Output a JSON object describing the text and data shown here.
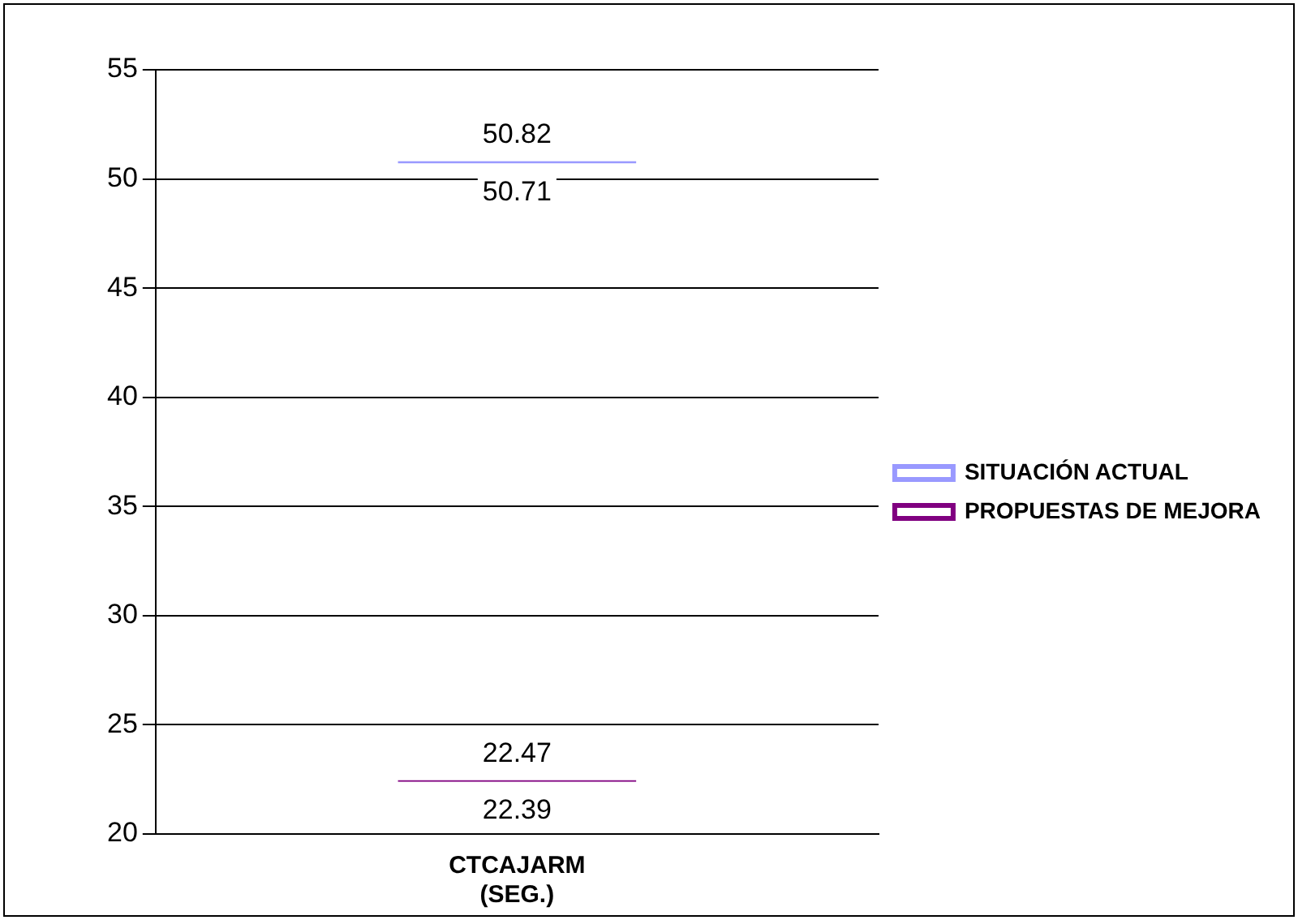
{
  "chart_data": {
    "type": "bar",
    "categories": [
      "CTCAJARM (SEG.)"
    ],
    "series": [
      {
        "name": "SITUACIÓN ACTUAL",
        "color": "#9999ff",
        "base": [
          50.71
        ],
        "values": [
          0.11
        ]
      },
      {
        "name": "PROPUESTAS DE MEJORA",
        "color": "#800080",
        "base": [
          22.39
        ],
        "values": [
          0.08
        ]
      }
    ],
    "ylim": [
      20,
      55
    ],
    "yticks": [
      20,
      25,
      30,
      35,
      40,
      45,
      50,
      55
    ],
    "grid": "y",
    "legend": "right",
    "annotations": [
      {
        "text": "50.82",
        "x": "CTCAJARM (SEG.)",
        "y": 50.82
      },
      {
        "text": "50.71",
        "x": "CTCAJARM (SEG.)",
        "y": 50.71
      },
      {
        "text": "22.47",
        "x": "CTCAJARM (SEG.)",
        "y": 22.47
      },
      {
        "text": "22.39",
        "x": "CTCAJARM (SEG.)",
        "y": 22.39
      }
    ]
  }
}
